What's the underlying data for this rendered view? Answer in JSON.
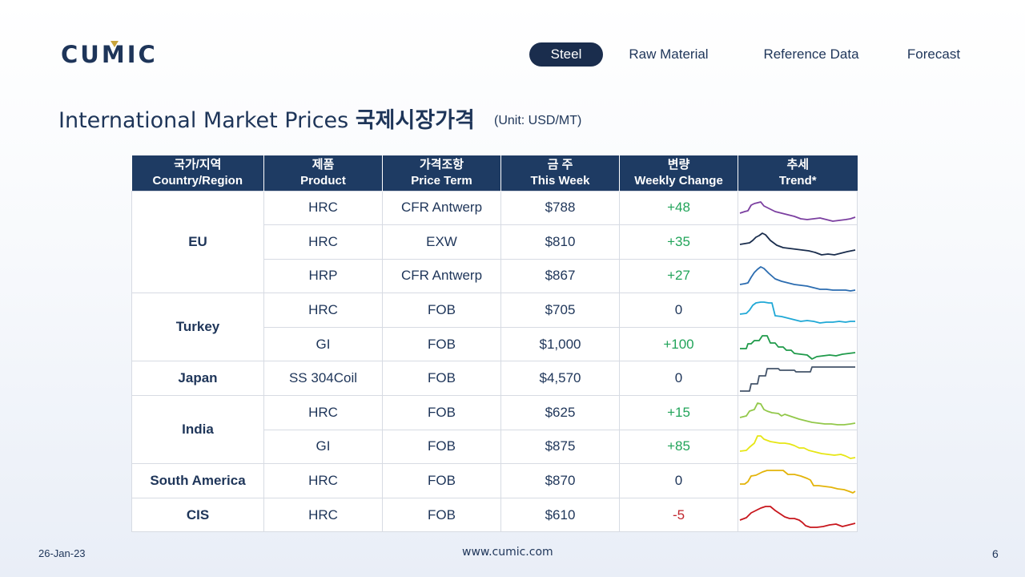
{
  "logo": "CUMIC",
  "nav": {
    "items": [
      {
        "label": "Steel",
        "active": true
      },
      {
        "label": "Raw Material",
        "active": false
      },
      {
        "label": "Reference Data",
        "active": false
      },
      {
        "label": "Forecast",
        "active": false
      }
    ]
  },
  "header": {
    "title_en": "International Market Prices",
    "title_ko": "국제시장가격",
    "unit": "(Unit: USD/MT)"
  },
  "table": {
    "columns": [
      {
        "ko": "국가/지역",
        "en": "Country/Region"
      },
      {
        "ko": "제품",
        "en": "Product"
      },
      {
        "ko": "가격조항",
        "en": "Price Term"
      },
      {
        "ko": "금 주",
        "en": "This Week"
      },
      {
        "ko": "변량",
        "en": "Weekly Change"
      },
      {
        "ko": "추세",
        "en": "Trend*"
      }
    ],
    "regions": [
      {
        "name": "EU",
        "rows": [
          {
            "product": "HRC",
            "term": "CFR Antwerp",
            "price": "$788",
            "change": "+48"
          },
          {
            "product": "HRC",
            "term": "EXW",
            "price": "$810",
            "change": "+35"
          },
          {
            "product": "HRP",
            "term": "CFR Antwerp",
            "price": "$867",
            "change": "+27"
          }
        ]
      },
      {
        "name": "Turkey",
        "rows": [
          {
            "product": "HRC",
            "term": "FOB",
            "price": "$705",
            "change": "0"
          },
          {
            "product": "GI",
            "term": "FOB",
            "price": "$1,000",
            "change": "+100"
          }
        ]
      },
      {
        "name": "Japan",
        "rows": [
          {
            "product": "SS 304Coil",
            "term": "FOB",
            "price": "$4,570",
            "change": "0"
          }
        ]
      },
      {
        "name": "India",
        "rows": [
          {
            "product": "HRC",
            "term": "FOB",
            "price": "$625",
            "change": "+15"
          },
          {
            "product": "GI",
            "term": "FOB",
            "price": "$875",
            "change": "+85"
          }
        ]
      },
      {
        "name": "South America",
        "rows": [
          {
            "product": "HRC",
            "term": "FOB",
            "price": "$870",
            "change": "0"
          }
        ]
      },
      {
        "name": "CIS",
        "rows": [
          {
            "product": "HRC",
            "term": "FOB",
            "price": "$610",
            "change": "-5"
          }
        ]
      }
    ],
    "trend_colors": [
      "#7b3fa0",
      "#1a2d4d",
      "#2b6cb0",
      "#1fa8d6",
      "#1f9a4a",
      "#44546a",
      "#92c84a",
      "#e6e614",
      "#e3b40a",
      "#c8161d"
    ],
    "change_colors": {
      "positive": "#22a45a",
      "negative": "#c0262d",
      "zero": "#1e3559"
    }
  },
  "footer": {
    "date": "26-Jan-23",
    "url": "www.cumic.com",
    "page": "6"
  }
}
